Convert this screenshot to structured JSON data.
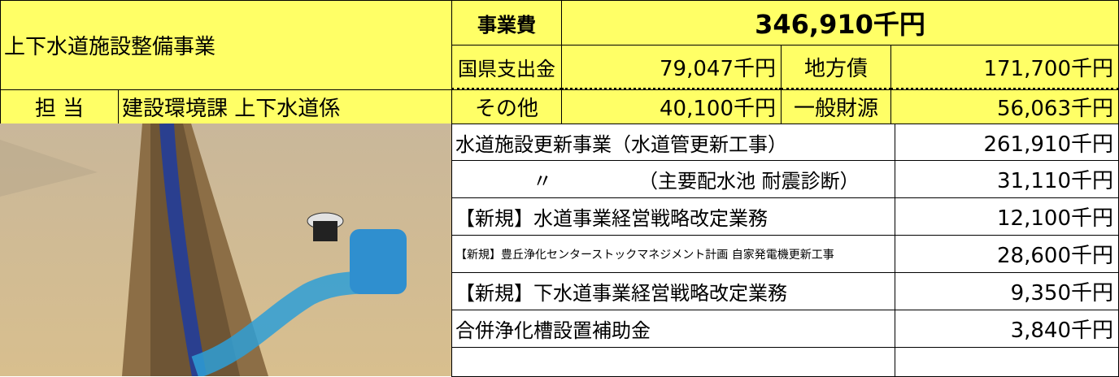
{
  "header": {
    "title": "上下水道施設整備事業",
    "staff_label": "担 当",
    "staff": "建設環境課 上下水道係"
  },
  "budget": {
    "label": "事業費",
    "total": "346,910千円",
    "items": [
      {
        "label": "国県支出金",
        "value": "79,047千円"
      },
      {
        "label": "地方債",
        "value": "171,700千円"
      },
      {
        "label": "その他",
        "value": "40,100千円"
      },
      {
        "label": "一般財源",
        "value": "56,063千円"
      }
    ]
  },
  "projects": [
    {
      "name": "水道施設更新事業（水道管更新工事）",
      "amount": "261,910千円"
    },
    {
      "name": "〃",
      "detail": "（主要配水池 耐震診断）",
      "amount": "31,110千円"
    },
    {
      "name": "【新規】水道事業経営戦略改定業務",
      "amount": "12,100千円"
    },
    {
      "name": "【新規】豊丘浄化センターストックマネジメント計画 自家発電機更新工事",
      "amount": "28,600千円"
    },
    {
      "name": "【新規】下水道事業経営戦略改定業務",
      "amount": "9,350千円"
    },
    {
      "name": "合併浄化槽設置補助金",
      "amount": "3,840千円"
    }
  ]
}
